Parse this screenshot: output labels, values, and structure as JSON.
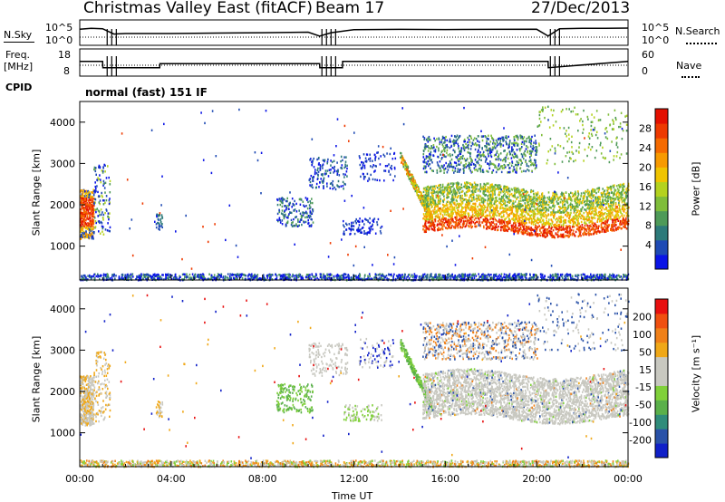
{
  "header": {
    "station": "Christmas Valley East (fitACF)",
    "beam": "Beam 17",
    "date": "27/Dec/2013"
  },
  "nsky_panel": {
    "left_label": "N.Sky",
    "left_ticks": [
      "10^5",
      "10^0"
    ],
    "right_ticks": [
      "10^5",
      "10^0"
    ],
    "right_label": "N.Search"
  },
  "freq_panel": {
    "left_label_1": "Freq.",
    "left_label_2": "[MHz]",
    "left_ticks": [
      "18",
      "8"
    ],
    "right_ticks": [
      "60",
      "0"
    ],
    "right_label": "Nave"
  },
  "cpid": {
    "label": "CPID",
    "value": "normal (fast) 151 IF"
  },
  "power_colorbar": {
    "label": "Power [dB]",
    "ticks": [
      "28",
      "24",
      "20",
      "16",
      "12",
      "8",
      "4"
    ],
    "colors": [
      "#0a14e6",
      "#1e4ab4",
      "#2d7a7a",
      "#4e9a58",
      "#7fbd3a",
      "#b4d21e",
      "#f0c400",
      "#f79a00",
      "#f56a00",
      "#ee3a00",
      "#e41000"
    ]
  },
  "velocity_colorbar": {
    "label": "Velocity [m s⁻¹]",
    "ticks": [
      "200",
      "100",
      "50",
      "15",
      "-15",
      "-50",
      "-100",
      "-200"
    ],
    "colors": [
      "#1020c8",
      "#2a52a8",
      "#2f8c7a",
      "#5ab04a",
      "#80d03a",
      "#c8c8c0",
      "#c8c8c0",
      "#f0a818",
      "#f08018",
      "#f05010",
      "#e81010"
    ]
  },
  "chart_data": [
    {
      "type": "line",
      "name": "nsky",
      "x_range": [
        0,
        24
      ],
      "y_scale": "log",
      "ylim": [
        1,
        100000
      ],
      "series": [
        {
          "x": [
            0,
            0.5,
            1,
            1.5,
            2,
            4,
            6,
            8,
            10,
            10.5,
            11,
            12,
            14,
            16,
            18,
            20,
            20.5,
            21,
            22,
            23,
            24
          ],
          "y": [
            2000,
            3000,
            2500,
            150,
            200,
            200,
            250,
            300,
            400,
            50,
            300,
            1500,
            1800,
            1600,
            1800,
            1900,
            50,
            2500,
            3000,
            3200,
            3500
          ]
        }
      ]
    },
    {
      "type": "line",
      "name": "frequency",
      "x_range": [
        0,
        24
      ],
      "ylim": [
        8,
        18
      ],
      "series": [
        {
          "x": [
            0,
            1,
            1.01,
            3.5,
            3.51,
            10.5,
            10.51,
            11.5,
            11.51,
            20.5,
            20.51,
            24
          ],
          "y": [
            13.5,
            13.5,
            10.8,
            10.8,
            12.5,
            12.5,
            10.8,
            10.8,
            13.5,
            13.5,
            10.8,
            13.5
          ]
        }
      ]
    },
    {
      "type": "heatmap",
      "name": "power",
      "xlabel": "",
      "ylabel": "Slant Range [km]",
      "x_range": [
        0,
        24
      ],
      "xticks": [
        "00:00",
        "04:00",
        "08:00",
        "12:00",
        "16:00",
        "20:00",
        "00:00"
      ],
      "ylim": [
        180,
        4500
      ],
      "yticks": [
        1000,
        2000,
        3000,
        4000
      ]
    },
    {
      "type": "heatmap",
      "name": "velocity",
      "xlabel": "Time UT",
      "ylabel": "Slant Range [km]",
      "x_range": [
        0,
        24
      ],
      "xticks": [
        "00:00",
        "04:00",
        "08:00",
        "12:00",
        "16:00",
        "20:00",
        "00:00"
      ],
      "ylim": [
        180,
        4500
      ],
      "yticks": [
        1000,
        2000,
        3000,
        4000
      ]
    }
  ]
}
